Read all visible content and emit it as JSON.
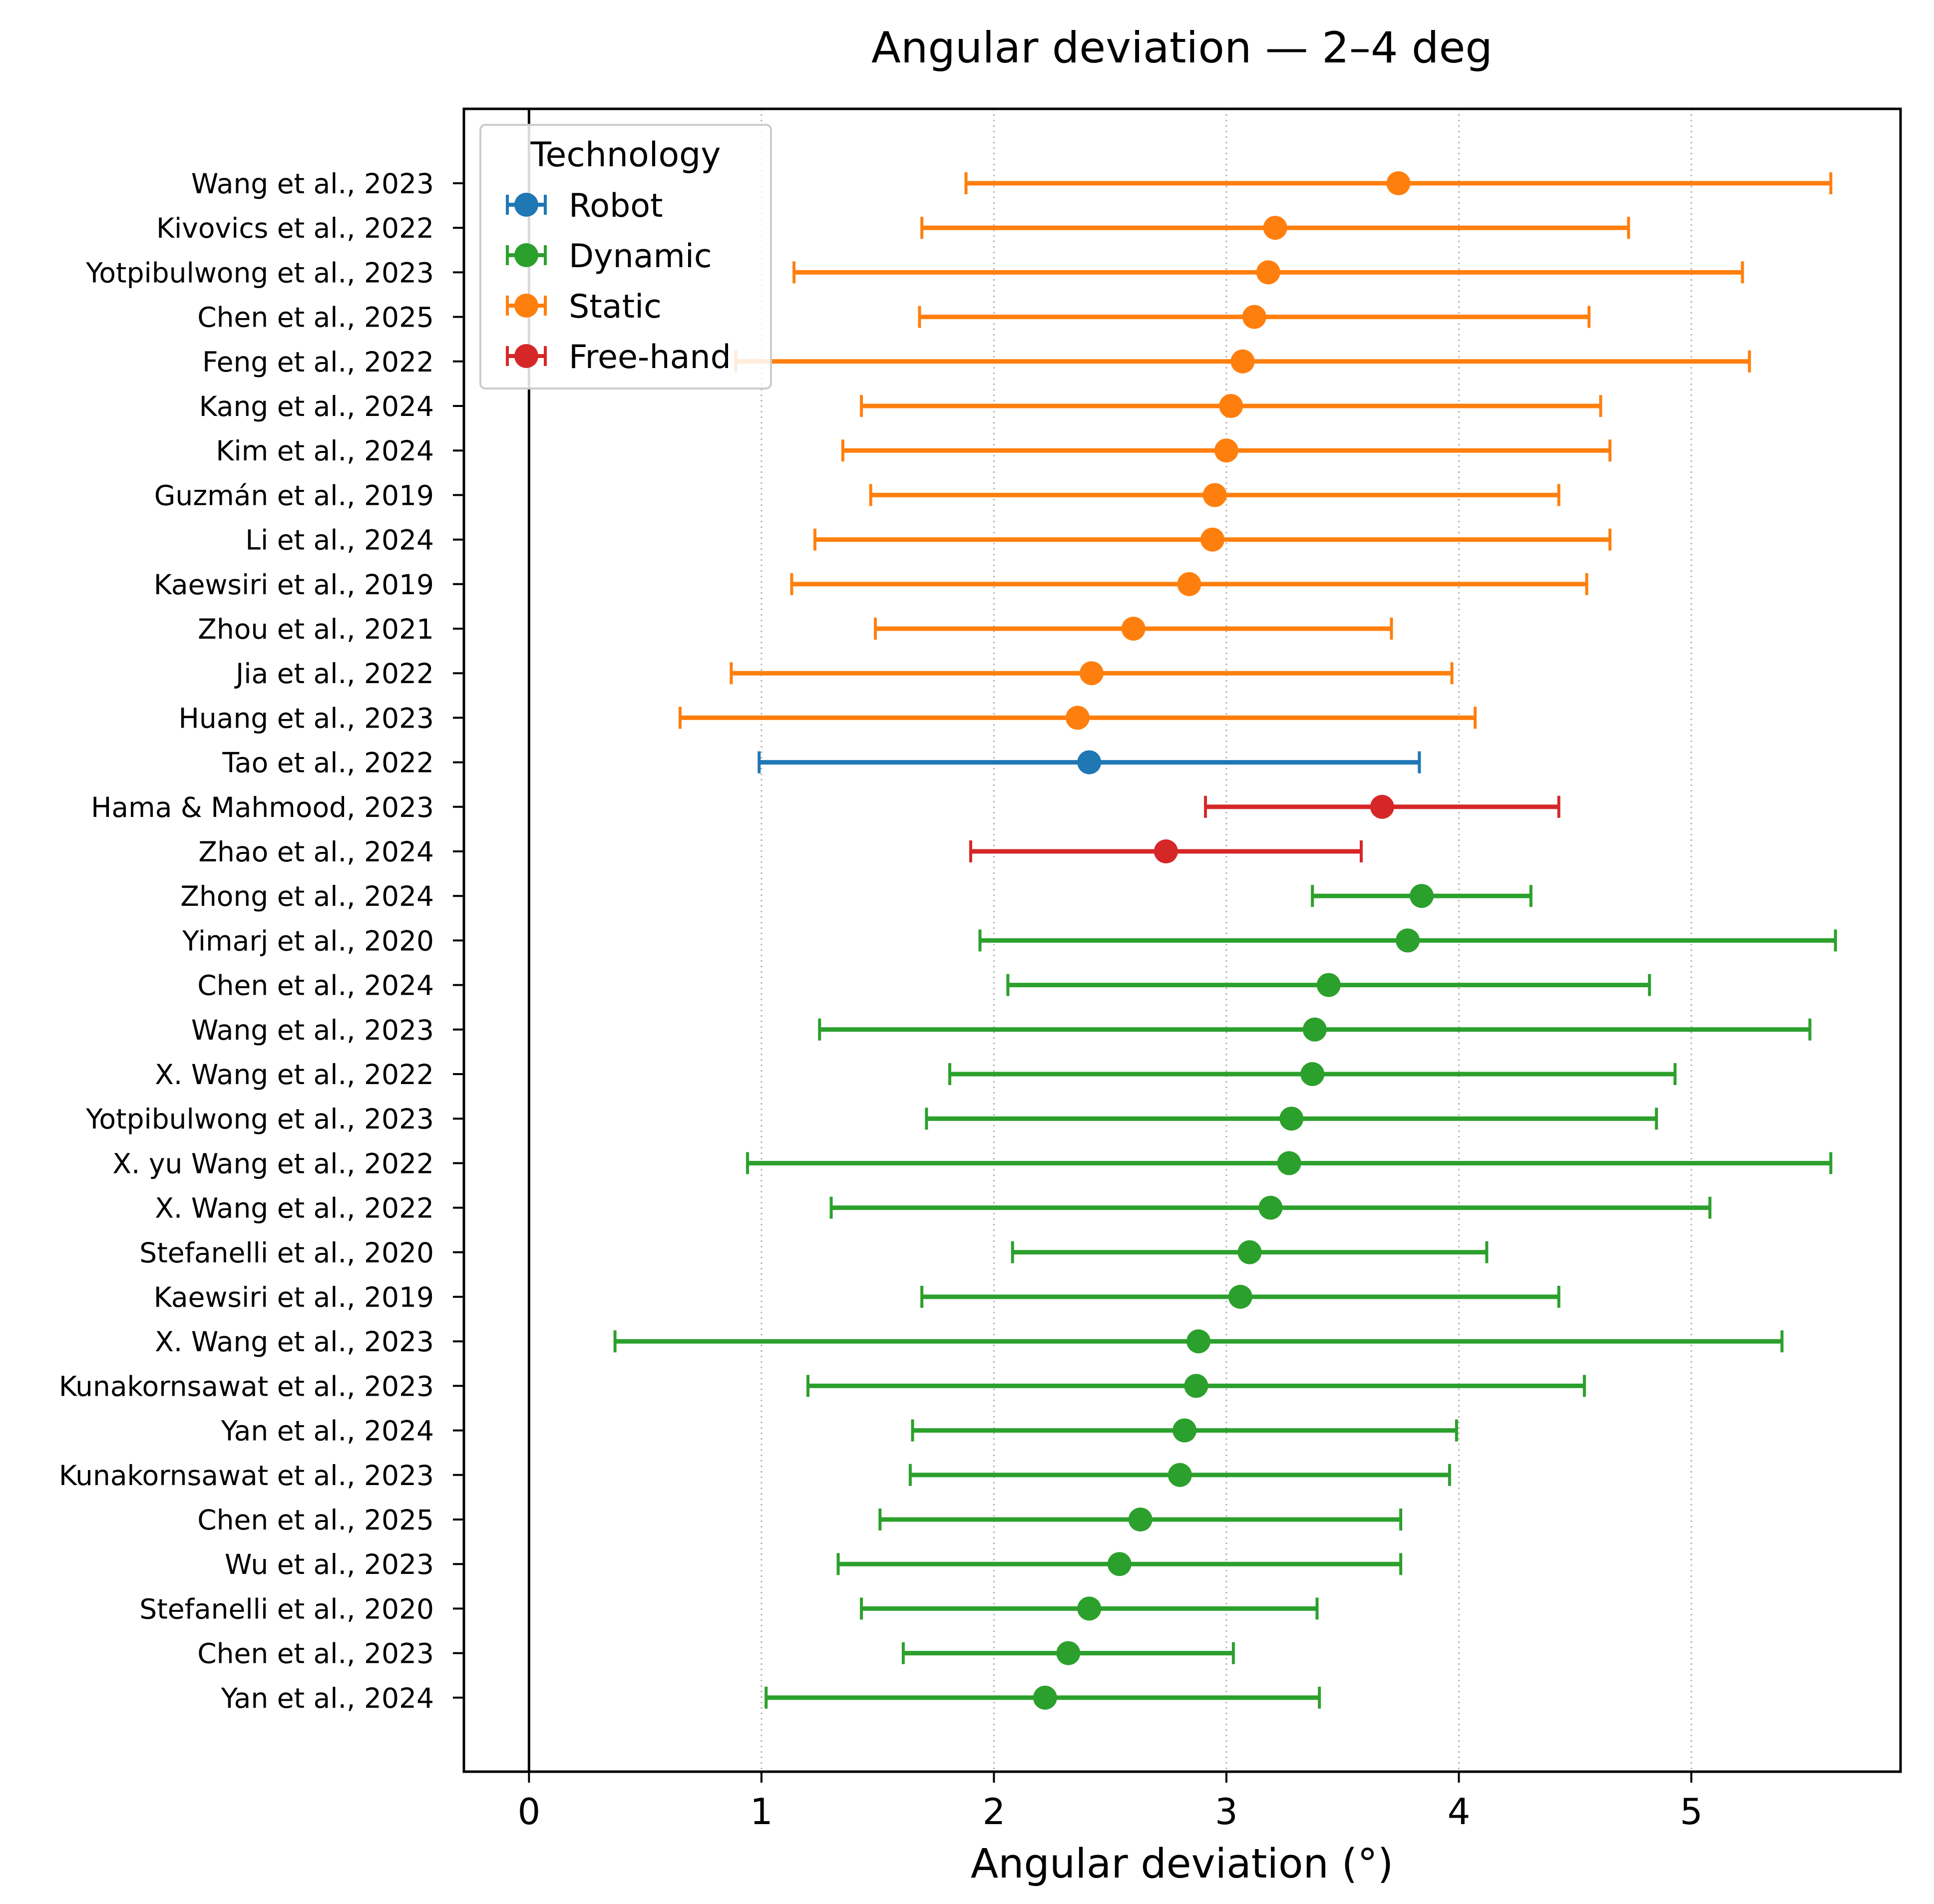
{
  "chart_data": {
    "type": "forest",
    "title": "Angular deviation — 2–4 deg",
    "xlabel": "Angular deviation (°)",
    "ylabel": "",
    "xlim": [
      -0.28,
      5.9
    ],
    "xticks": [
      "0",
      "1",
      "2",
      "3",
      "4",
      "5"
    ],
    "grid": "x-dotted",
    "reference_line": 0,
    "legend": {
      "title": "Technology",
      "placement": "upper-left",
      "entries": [
        {
          "label": "Robot",
          "color": "#1f77b4"
        },
        {
          "label": "Dynamic",
          "color": "#2ca02c"
        },
        {
          "label": "Static",
          "color": "#ff7f0e"
        },
        {
          "label": "Free-hand",
          "color": "#d62728"
        }
      ]
    },
    "studies": [
      {
        "label": "Wang et al., 2023",
        "tech": "Static",
        "mean": 3.74,
        "low": 1.88,
        "high": 5.6
      },
      {
        "label": "Kivovics et al., 2022",
        "tech": "Static",
        "mean": 3.21,
        "low": 1.69,
        "high": 4.73
      },
      {
        "label": "Yotpibulwong et al., 2023",
        "tech": "Static",
        "mean": 3.18,
        "low": 1.14,
        "high": 5.22
      },
      {
        "label": "Chen et al., 2025",
        "tech": "Static",
        "mean": 3.12,
        "low": 1.68,
        "high": 4.56
      },
      {
        "label": "Feng et al., 2022",
        "tech": "Static",
        "mean": 3.07,
        "low": 0.89,
        "high": 5.25
      },
      {
        "label": "Kang et al., 2024",
        "tech": "Static",
        "mean": 3.02,
        "low": 1.43,
        "high": 4.61
      },
      {
        "label": "Kim et al., 2024",
        "tech": "Static",
        "mean": 3.0,
        "low": 1.35,
        "high": 4.65
      },
      {
        "label": "Guzmán et al., 2019",
        "tech": "Static",
        "mean": 2.95,
        "low": 1.47,
        "high": 4.43
      },
      {
        "label": "Li et al., 2024",
        "tech": "Static",
        "mean": 2.94,
        "low": 1.23,
        "high": 4.65
      },
      {
        "label": "Kaewsiri et al., 2019",
        "tech": "Static",
        "mean": 2.84,
        "low": 1.13,
        "high": 4.55
      },
      {
        "label": "Zhou et al., 2021",
        "tech": "Static",
        "mean": 2.6,
        "low": 1.49,
        "high": 3.71
      },
      {
        "label": "Jia et al., 2022",
        "tech": "Static",
        "mean": 2.42,
        "low": 0.87,
        "high": 3.97
      },
      {
        "label": "Huang et al., 2023",
        "tech": "Static",
        "mean": 2.36,
        "low": 0.65,
        "high": 4.07
      },
      {
        "label": "Tao et al., 2022",
        "tech": "Robot",
        "mean": 2.41,
        "low": 0.99,
        "high": 3.83
      },
      {
        "label": "Hama & Mahmood, 2023",
        "tech": "Free-hand",
        "mean": 3.67,
        "low": 2.91,
        "high": 4.43
      },
      {
        "label": "Zhao et al., 2024",
        "tech": "Free-hand",
        "mean": 2.74,
        "low": 1.9,
        "high": 3.58
      },
      {
        "label": "Zhong et al., 2024",
        "tech": "Dynamic",
        "mean": 3.84,
        "low": 3.37,
        "high": 4.31
      },
      {
        "label": "Yimarj et al., 2020",
        "tech": "Dynamic",
        "mean": 3.78,
        "low": 1.94,
        "high": 5.62
      },
      {
        "label": "Chen et al., 2024",
        "tech": "Dynamic",
        "mean": 3.44,
        "low": 2.06,
        "high": 4.82
      },
      {
        "label": "Wang et al., 2023",
        "tech": "Dynamic",
        "mean": 3.38,
        "low": 1.25,
        "high": 5.51
      },
      {
        "label": "X. Wang et al., 2022",
        "tech": "Dynamic",
        "mean": 3.37,
        "low": 1.81,
        "high": 4.93
      },
      {
        "label": "Yotpibulwong et al., 2023",
        "tech": "Dynamic",
        "mean": 3.28,
        "low": 1.71,
        "high": 4.85
      },
      {
        "label": "X. yu Wang et al., 2022",
        "tech": "Dynamic",
        "mean": 3.27,
        "low": 0.94,
        "high": 5.6
      },
      {
        "label": "X. Wang et al., 2022",
        "tech": "Dynamic",
        "mean": 3.19,
        "low": 1.3,
        "high": 5.08
      },
      {
        "label": "Stefanelli et al., 2020",
        "tech": "Dynamic",
        "mean": 3.1,
        "low": 2.08,
        "high": 4.12
      },
      {
        "label": "Kaewsiri et al., 2019",
        "tech": "Dynamic",
        "mean": 3.06,
        "low": 1.69,
        "high": 4.43
      },
      {
        "label": "X. Wang et al., 2023",
        "tech": "Dynamic",
        "mean": 2.88,
        "low": 0.37,
        "high": 5.39
      },
      {
        "label": "Kunakornsawat et al., 2023",
        "tech": "Dynamic",
        "mean": 2.87,
        "low": 1.2,
        "high": 4.54
      },
      {
        "label": "Yan et al., 2024",
        "tech": "Dynamic",
        "mean": 2.82,
        "low": 1.65,
        "high": 3.99
      },
      {
        "label": "Kunakornsawat et al., 2023",
        "tech": "Dynamic",
        "mean": 2.8,
        "low": 1.64,
        "high": 3.96
      },
      {
        "label": "Chen et al., 2025",
        "tech": "Dynamic",
        "mean": 2.63,
        "low": 1.51,
        "high": 3.75
      },
      {
        "label": "Wu et al., 2023",
        "tech": "Dynamic",
        "mean": 2.54,
        "low": 1.33,
        "high": 3.75
      },
      {
        "label": "Stefanelli et al., 2020",
        "tech": "Dynamic",
        "mean": 2.41,
        "low": 1.43,
        "high": 3.39
      },
      {
        "label": "Chen et al., 2023",
        "tech": "Dynamic",
        "mean": 2.32,
        "low": 1.61,
        "high": 3.03
      },
      {
        "label": "Yan et al., 2024",
        "tech": "Dynamic",
        "mean": 2.22,
        "low": 1.02,
        "high": 3.4
      }
    ]
  }
}
